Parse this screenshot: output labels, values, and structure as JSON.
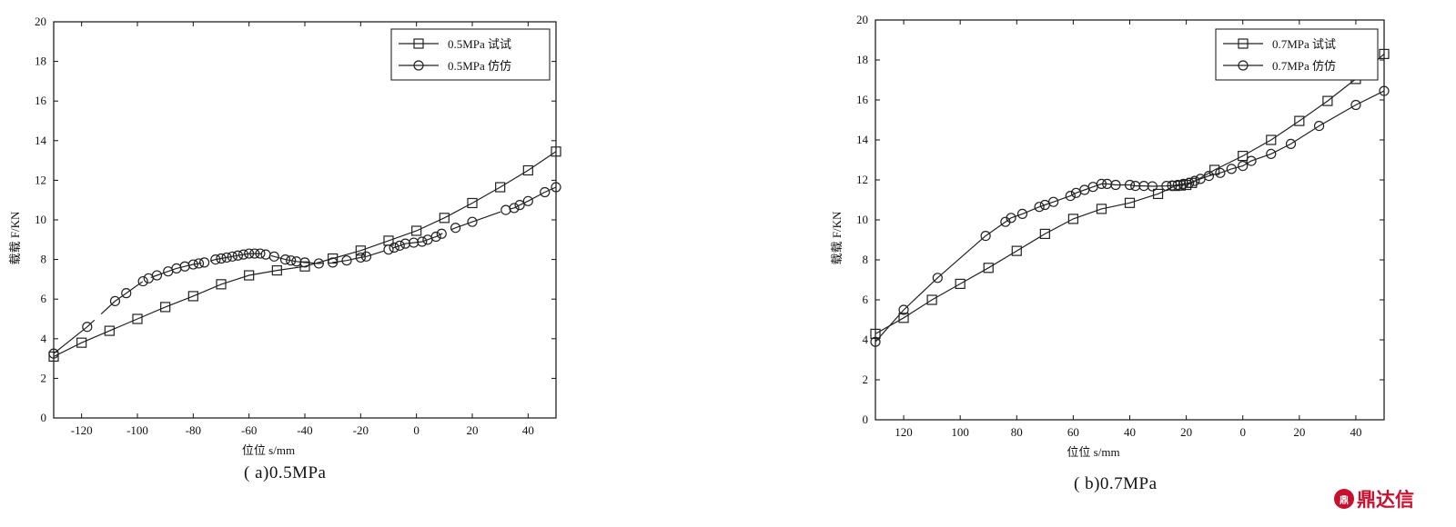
{
  "chart_data": [
    {
      "type": "line",
      "title": "",
      "caption": "( a)0.5MPa",
      "xlabel": "位位 s/mm",
      "ylabel": "载载 F/KN",
      "xlim": [
        -130,
        50
      ],
      "ylim": [
        0,
        20
      ],
      "x_ticks": [
        -120,
        -100,
        -80,
        -60,
        -40,
        -20,
        0,
        20,
        40
      ],
      "y_ticks": [
        0,
        2,
        4,
        6,
        8,
        10,
        12,
        14,
        16,
        18,
        20
      ],
      "legend_position": "top-right",
      "grid": false,
      "series": [
        {
          "name": "0.5MPa 试试",
          "marker": "square",
          "line_style": "solid",
          "points": [
            [
              -130,
              3.1
            ],
            [
              -120,
              3.8
            ],
            [
              -110,
              4.4
            ],
            [
              -100,
              5.0
            ],
            [
              -90,
              5.6
            ],
            [
              -80,
              6.15
            ],
            [
              -70,
              6.75
            ],
            [
              -60,
              7.2
            ],
            [
              -50,
              7.45
            ],
            [
              -40,
              7.65
            ],
            [
              -30,
              8.05
            ],
            [
              -20,
              8.45
            ],
            [
              -10,
              8.95
            ],
            [
              0,
              9.45
            ],
            [
              10,
              10.1
            ],
            [
              20,
              10.85
            ],
            [
              30,
              11.65
            ],
            [
              40,
              12.5
            ],
            [
              50,
              13.45
            ]
          ]
        },
        {
          "name": "0.5MPa 仿仿",
          "marker": "circle",
          "line_style": "dashed",
          "points": [
            [
              -130,
              3.25
            ],
            [
              -118,
              4.6
            ],
            [
              -108,
              5.9
            ],
            [
              -104,
              6.3
            ],
            [
              -98,
              6.9
            ],
            [
              -96,
              7.05
            ],
            [
              -93,
              7.2
            ],
            [
              -89,
              7.4
            ],
            [
              -86,
              7.55
            ],
            [
              -83,
              7.65
            ],
            [
              -80,
              7.75
            ],
            [
              -78,
              7.8
            ],
            [
              -76,
              7.85
            ],
            [
              -72,
              8.0
            ],
            [
              -70,
              8.05
            ],
            [
              -68,
              8.1
            ],
            [
              -66,
              8.15
            ],
            [
              -64,
              8.2
            ],
            [
              -62,
              8.25
            ],
            [
              -60,
              8.3
            ],
            [
              -58,
              8.3
            ],
            [
              -56,
              8.3
            ],
            [
              -54,
              8.25
            ],
            [
              -51,
              8.15
            ],
            [
              -47,
              8.0
            ],
            [
              -45,
              7.95
            ],
            [
              -43,
              7.9
            ],
            [
              -40,
              7.85
            ],
            [
              -35,
              7.8
            ],
            [
              -30,
              7.85
            ],
            [
              -25,
              7.95
            ],
            [
              -20,
              8.1
            ],
            [
              -18,
              8.15
            ],
            [
              -10,
              8.5
            ],
            [
              -8,
              8.6
            ],
            [
              -6,
              8.7
            ],
            [
              -4,
              8.8
            ],
            [
              -1,
              8.85
            ],
            [
              2,
              8.9
            ],
            [
              4,
              9.0
            ],
            [
              7,
              9.15
            ],
            [
              9,
              9.3
            ],
            [
              14,
              9.6
            ],
            [
              20,
              9.9
            ],
            [
              32,
              10.5
            ],
            [
              35,
              10.6
            ],
            [
              37,
              10.75
            ],
            [
              40,
              10.95
            ],
            [
              46,
              11.4
            ],
            [
              50,
              11.65
            ]
          ]
        }
      ]
    },
    {
      "type": "line",
      "title": "",
      "caption": "( b)0.7MPa",
      "xlabel": "位位 s/mm",
      "ylabel": "载载 F/KN",
      "xlim": [
        130,
        -50
      ],
      "ylim": [
        0,
        20
      ],
      "x_ticks": [
        120,
        100,
        80,
        60,
        40,
        20,
        0,
        -20,
        -40
      ],
      "x_tick_labels": [
        "120",
        "100",
        "80",
        "60",
        "40",
        "20",
        "0",
        "20",
        "40"
      ],
      "y_ticks": [
        0,
        2,
        4,
        6,
        8,
        10,
        12,
        14,
        16,
        18,
        20
      ],
      "legend_position": "top-right",
      "grid": false,
      "series": [
        {
          "name": "0.7MPa 试试",
          "marker": "square",
          "line_style": "solid",
          "points": [
            [
              130,
              4.3
            ],
            [
              120,
              5.1
            ],
            [
              110,
              6.0
            ],
            [
              100,
              6.8
            ],
            [
              90,
              7.6
            ],
            [
              80,
              8.45
            ],
            [
              70,
              9.3
            ],
            [
              60,
              10.05
            ],
            [
              50,
              10.55
            ],
            [
              40,
              10.85
            ],
            [
              30,
              11.3
            ],
            [
              24,
              11.7
            ],
            [
              22,
              11.72
            ],
            [
              20,
              11.75
            ],
            [
              18,
              11.85
            ],
            [
              10,
              12.5
            ],
            [
              0,
              13.2
            ],
            [
              -10,
              14.0
            ],
            [
              -20,
              14.95
            ],
            [
              -30,
              15.95
            ],
            [
              -40,
              17.05
            ],
            [
              -50,
              18.3
            ]
          ]
        },
        {
          "name": "0.7MPa 仿仿",
          "marker": "circle",
          "line_style": "solid",
          "points": [
            [
              130,
              3.9
            ],
            [
              120,
              5.5
            ],
            [
              108,
              7.1
            ],
            [
              91,
              9.2
            ],
            [
              84,
              9.9
            ],
            [
              82,
              10.1
            ],
            [
              78,
              10.3
            ],
            [
              72,
              10.65
            ],
            [
              70,
              10.75
            ],
            [
              67,
              10.9
            ],
            [
              61,
              11.2
            ],
            [
              59,
              11.35
            ],
            [
              56,
              11.5
            ],
            [
              53,
              11.65
            ],
            [
              50,
              11.8
            ],
            [
              48,
              11.8
            ],
            [
              45,
              11.75
            ],
            [
              40,
              11.75
            ],
            [
              38,
              11.7
            ],
            [
              35,
              11.7
            ],
            [
              32,
              11.68
            ],
            [
              27,
              11.7
            ],
            [
              25,
              11.72
            ],
            [
              23,
              11.75
            ],
            [
              21,
              11.8
            ],
            [
              19,
              11.85
            ],
            [
              17,
              11.95
            ],
            [
              15,
              12.05
            ],
            [
              12,
              12.2
            ],
            [
              8,
              12.35
            ],
            [
              4,
              12.55
            ],
            [
              0,
              12.7
            ],
            [
              -3,
              12.95
            ],
            [
              -10,
              13.3
            ],
            [
              -17,
              13.8
            ],
            [
              -27,
              14.7
            ],
            [
              -40,
              15.75
            ],
            [
              -50,
              16.45
            ]
          ]
        }
      ]
    }
  ],
  "captions": {
    "a": "( a)0.5MPa",
    "b": "( b)0.7MPa"
  },
  "watermark": {
    "logo_text": "鼎",
    "text": "鼎达信"
  }
}
